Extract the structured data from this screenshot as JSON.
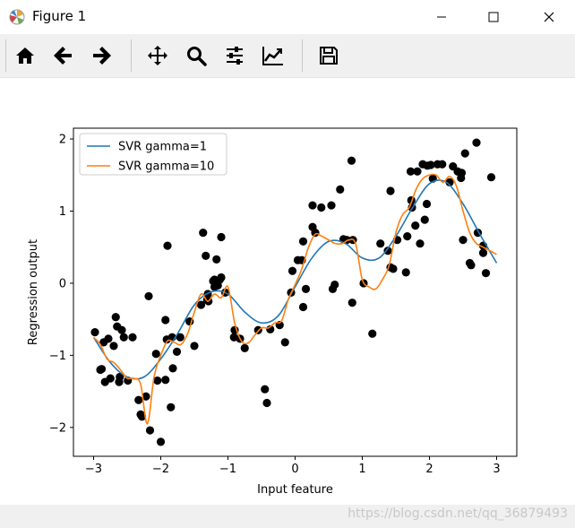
{
  "window": {
    "title": "Figure 1",
    "app_icon": "matplotlib-logo-icon",
    "controls": [
      "minimize-icon",
      "maximize-icon",
      "close-icon"
    ]
  },
  "toolbar": {
    "tools": [
      "home-icon",
      "back-arrow-icon",
      "forward-arrow-icon",
      "pan-move-icon",
      "zoom-magnifier-icon",
      "configure-subplots-icon",
      "edit-axis-icon",
      "save-floppy-icon"
    ]
  },
  "watermark": "https://blog.csdn.net/qq_36879493",
  "chart_data": {
    "type": "line",
    "xlabel": "Input feature",
    "ylabel": "Regression output",
    "xlim": [
      -3.3,
      3.3
    ],
    "ylim": [
      -2.4,
      2.15
    ],
    "xticks": [
      -3,
      -2,
      -1,
      0,
      1,
      2,
      3
    ],
    "yticks": [
      -2,
      -1,
      0,
      1,
      2
    ],
    "xtick_labels": [
      "−3",
      "−2",
      "−1",
      "0",
      "1",
      "2",
      "3"
    ],
    "ytick_labels": [
      "−2",
      "−1",
      "0",
      "1",
      "2"
    ],
    "legend_position": "top-left",
    "series": [
      {
        "name": "SVR gamma=1",
        "color": "#1f77b4",
        "x": [
          -3.0,
          -2.75,
          -2.5,
          -2.25,
          -2.0,
          -1.75,
          -1.5,
          -1.25,
          -1.0,
          -0.75,
          -0.5,
          -0.25,
          0.0,
          0.25,
          0.5,
          0.75,
          1.0,
          1.25,
          1.5,
          1.75,
          2.0,
          2.25,
          2.5,
          2.75,
          3.0
        ],
        "y": [
          -0.75,
          -1.1,
          -1.3,
          -1.3,
          -1.05,
          -0.7,
          -0.3,
          -0.12,
          -0.15,
          -0.4,
          -0.55,
          -0.45,
          -0.05,
          0.35,
          0.58,
          0.55,
          0.35,
          0.35,
          0.65,
          1.05,
          1.38,
          1.4,
          1.1,
          0.68,
          0.28
        ]
      },
      {
        "name": "SVR gamma=10",
        "color": "#ff7f0e",
        "x": [
          -3.0,
          -2.9,
          -2.8,
          -2.7,
          -2.6,
          -2.5,
          -2.4,
          -2.3,
          -2.2,
          -2.1,
          -2.0,
          -1.9,
          -1.8,
          -1.7,
          -1.6,
          -1.5,
          -1.4,
          -1.3,
          -1.2,
          -1.1,
          -1.0,
          -0.9,
          -0.8,
          -0.7,
          -0.6,
          -0.5,
          -0.4,
          -0.3,
          -0.2,
          -0.1,
          0.0,
          0.1,
          0.2,
          0.3,
          0.4,
          0.5,
          0.6,
          0.7,
          0.8,
          0.9,
          1.0,
          1.1,
          1.2,
          1.3,
          1.4,
          1.5,
          1.6,
          1.7,
          1.8,
          1.9,
          2.0,
          2.1,
          2.2,
          2.3,
          2.4,
          2.5,
          2.6,
          2.7,
          2.8,
          2.9,
          3.0
        ],
        "y": [
          -0.75,
          -0.85,
          -1.05,
          -1.1,
          -1.2,
          -1.32,
          -1.32,
          -1.4,
          -1.95,
          -1.3,
          -1.0,
          -0.8,
          -0.82,
          -0.85,
          -0.7,
          -0.4,
          -0.15,
          -0.25,
          -0.15,
          -0.2,
          -0.05,
          -0.55,
          -0.8,
          -0.83,
          -0.72,
          -0.62,
          -0.62,
          -0.55,
          -0.52,
          -0.22,
          -0.02,
          0.2,
          0.5,
          0.68,
          0.65,
          0.6,
          0.55,
          0.55,
          0.6,
          0.55,
          0.05,
          -0.05,
          -0.08,
          0.05,
          0.25,
          0.7,
          0.95,
          1.05,
          1.3,
          1.45,
          1.5,
          1.5,
          1.4,
          1.48,
          1.35,
          1.0,
          0.7,
          0.55,
          0.5,
          0.45,
          0.4
        ]
      }
    ],
    "scatter": {
      "color": "#000000",
      "points": [
        [
          -2.98,
          -0.68
        ],
        [
          -2.9,
          -1.2
        ],
        [
          -2.88,
          -1.19
        ],
        [
          -2.85,
          -0.82
        ],
        [
          -2.83,
          -1.37
        ],
        [
          -2.78,
          -0.77
        ],
        [
          -2.75,
          -1.32
        ],
        [
          -2.7,
          -0.87
        ],
        [
          -2.67,
          -0.47
        ],
        [
          -2.65,
          -0.6
        ],
        [
          -2.62,
          -1.37
        ],
        [
          -2.61,
          -1.3
        ],
        [
          -2.58,
          -0.65
        ],
        [
          -2.55,
          -0.75
        ],
        [
          -2.49,
          -1.35
        ],
        [
          -2.42,
          -0.75
        ],
        [
          -2.33,
          -1.62
        ],
        [
          -2.3,
          -1.82
        ],
        [
          -2.28,
          -1.85
        ],
        [
          -2.22,
          -1.57
        ],
        [
          -2.18,
          -0.18
        ],
        [
          -2.16,
          -2.04
        ],
        [
          -2.07,
          -0.98
        ],
        [
          -2.05,
          -1.35
        ],
        [
          -2.0,
          -2.2
        ],
        [
          -1.93,
          -1.34
        ],
        [
          -1.93,
          -0.51
        ],
        [
          -1.91,
          -0.78
        ],
        [
          -1.9,
          0.52
        ],
        [
          -1.85,
          -1.72
        ],
        [
          -1.82,
          -1.18
        ],
        [
          -1.83,
          -0.75
        ],
        [
          -1.76,
          -0.95
        ],
        [
          -1.71,
          -0.75
        ],
        [
          -1.57,
          -0.53
        ],
        [
          -1.5,
          -0.87
        ],
        [
          -1.4,
          -0.3
        ],
        [
          -1.37,
          0.7
        ],
        [
          -1.33,
          0.38
        ],
        [
          -1.31,
          -0.23
        ],
        [
          -1.3,
          -0.15
        ],
        [
          -1.29,
          -0.25
        ],
        [
          -1.22,
          0.03
        ],
        [
          -1.2,
          0.05
        ],
        [
          -1.2,
          -0.05
        ],
        [
          -1.17,
          0.33
        ],
        [
          -1.15,
          -0.03
        ],
        [
          -1.12,
          0.05
        ],
        [
          -1.1,
          0.08
        ],
        [
          -1.1,
          0.64
        ],
        [
          -1.04,
          -0.13
        ],
        [
          -0.91,
          -0.75
        ],
        [
          -0.9,
          -0.65
        ],
        [
          -0.82,
          -0.77
        ],
        [
          -0.75,
          -0.9
        ],
        [
          -0.55,
          -0.65
        ],
        [
          -0.45,
          -1.47
        ],
        [
          -0.42,
          -1.66
        ],
        [
          -0.37,
          -0.64
        ],
        [
          -0.23,
          -0.58
        ],
        [
          -0.15,
          -0.82
        ],
        [
          -0.06,
          -0.13
        ],
        [
          -0.04,
          0.17
        ],
        [
          0.04,
          0.32
        ],
        [
          0.1,
          0.32
        ],
        [
          0.12,
          0.58
        ],
        [
          0.12,
          -0.33
        ],
        [
          0.16,
          -0.08
        ],
        [
          0.26,
          1.08
        ],
        [
          0.26,
          0.78
        ],
        [
          0.3,
          0.7
        ],
        [
          0.39,
          1.05
        ],
        [
          0.54,
          1.08
        ],
        [
          0.56,
          -0.08
        ],
        [
          0.59,
          -0.02
        ],
        [
          0.67,
          1.3
        ],
        [
          0.72,
          0.61
        ],
        [
          0.77,
          0.6
        ],
        [
          0.84,
          1.7
        ],
        [
          0.86,
          0.6
        ],
        [
          0.85,
          -0.27
        ],
        [
          1.02,
          0.0
        ],
        [
          1.15,
          -0.7
        ],
        [
          1.27,
          0.55
        ],
        [
          1.38,
          0.45
        ],
        [
          1.42,
          1.28
        ],
        [
          1.42,
          0.22
        ],
        [
          1.46,
          0.2
        ],
        [
          1.52,
          0.6
        ],
        [
          1.65,
          0.15
        ],
        [
          1.67,
          0.65
        ],
        [
          1.72,
          1.55
        ],
        [
          1.73,
          1.15
        ],
        [
          1.74,
          1.05
        ],
        [
          1.79,
          0.8
        ],
        [
          1.82,
          1.55
        ],
        [
          1.86,
          0.55
        ],
        [
          1.9,
          1.65
        ],
        [
          1.93,
          0.88
        ],
        [
          1.96,
          1.1
        ],
        [
          1.97,
          1.63
        ],
        [
          2.02,
          1.64
        ],
        [
          2.05,
          1.45
        ],
        [
          2.12,
          1.65
        ],
        [
          2.19,
          1.65
        ],
        [
          2.3,
          1.4
        ],
        [
          2.35,
          1.62
        ],
        [
          2.42,
          1.55
        ],
        [
          2.47,
          1.46
        ],
        [
          2.48,
          1.53
        ],
        [
          2.5,
          0.6
        ],
        [
          2.53,
          1.8
        ],
        [
          2.6,
          0.28
        ],
        [
          2.62,
          0.25
        ],
        [
          2.7,
          1.95
        ],
        [
          2.72,
          0.7
        ],
        [
          2.8,
          0.42
        ],
        [
          2.8,
          0.52
        ],
        [
          2.84,
          0.14
        ],
        [
          2.92,
          1.47
        ]
      ]
    }
  }
}
